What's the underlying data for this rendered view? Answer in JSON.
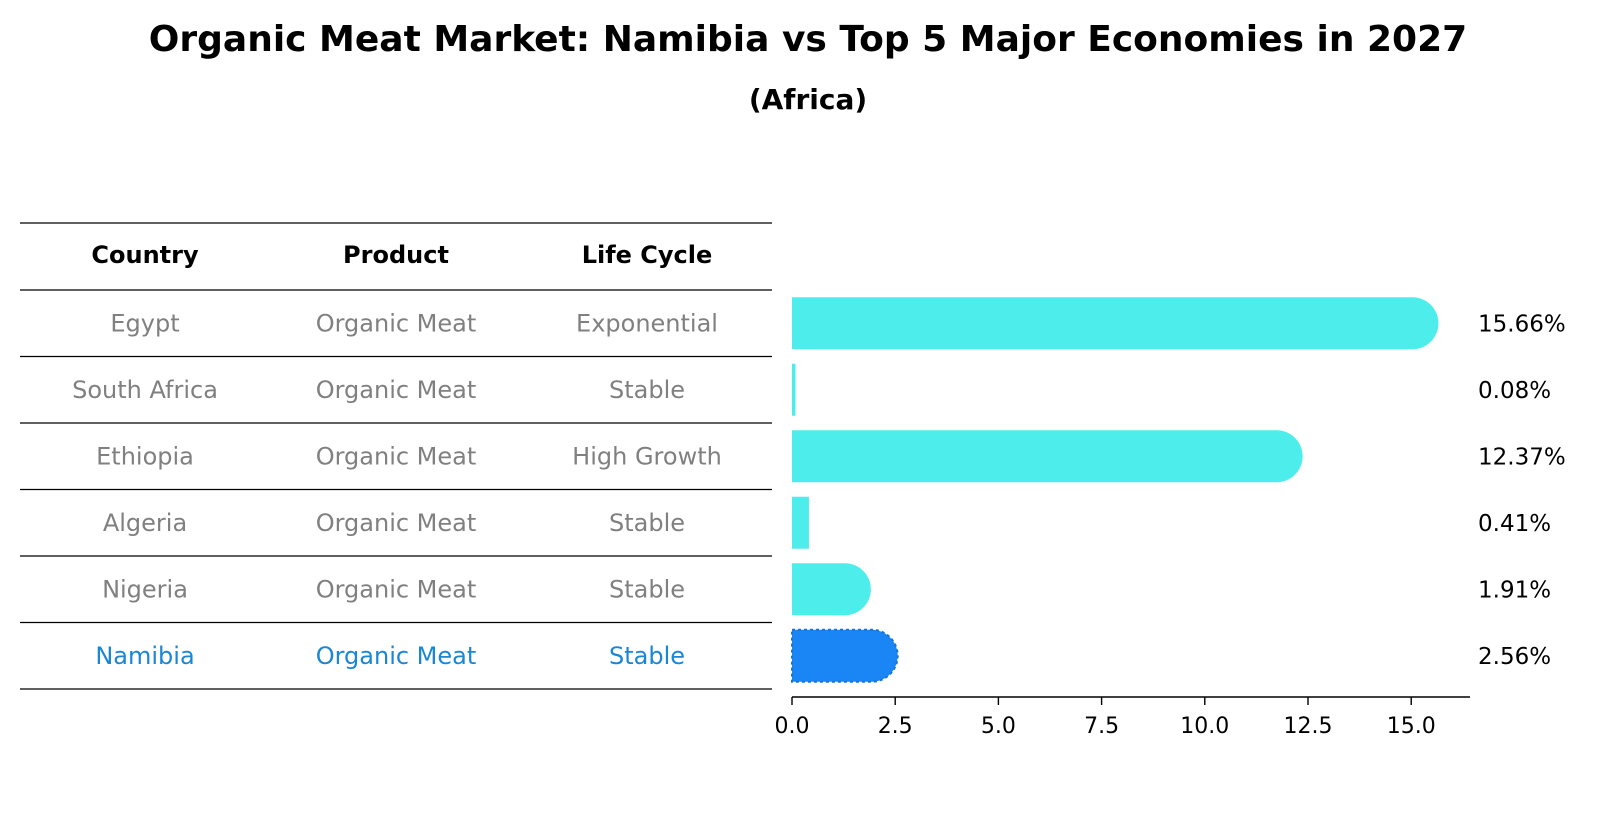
{
  "title": "Organic Meat Market: Namibia vs Top 5 Major Economies in 2027",
  "subtitle": "(Africa)",
  "colors": {
    "bar": "#4dedeb",
    "highlight": "#1a86f5",
    "muted_text": "#808080",
    "highlight_text": "#1a86d6"
  },
  "table": {
    "headers": [
      "Country",
      "Product",
      "Life Cycle"
    ],
    "rows": [
      {
        "country": "Egypt",
        "product": "Organic Meat",
        "life_cycle": "Exponential"
      },
      {
        "country": "South Africa",
        "product": "Organic Meat",
        "life_cycle": "Stable"
      },
      {
        "country": "Ethiopia",
        "product": "Organic Meat",
        "life_cycle": "High Growth"
      },
      {
        "country": "Algeria",
        "product": "Organic Meat",
        "life_cycle": "Stable"
      },
      {
        "country": "Nigeria",
        "product": "Organic Meat",
        "life_cycle": "Stable"
      },
      {
        "country": "Namibia",
        "product": "Organic Meat",
        "life_cycle": "Stable",
        "highlighted": true
      }
    ]
  },
  "chart_data": {
    "type": "bar",
    "orientation": "horizontal",
    "categories": [
      "Egypt",
      "South Africa",
      "Ethiopia",
      "Algeria",
      "Nigeria",
      "Namibia"
    ],
    "values": [
      15.66,
      0.08,
      12.37,
      0.41,
      1.91,
      2.56
    ],
    "value_labels": [
      "15.66%",
      "0.08%",
      "12.37%",
      "0.41%",
      "1.91%",
      "2.56%"
    ],
    "highlight": "Namibia",
    "xticks": [
      0.0,
      2.5,
      5.0,
      7.5,
      10.0,
      12.5,
      15.0
    ],
    "xtick_labels": [
      "0.0",
      "2.5",
      "5.0",
      "7.5",
      "10.0",
      "12.5",
      "15.0"
    ],
    "xlim": [
      0,
      16.4
    ],
    "grid": false
  }
}
